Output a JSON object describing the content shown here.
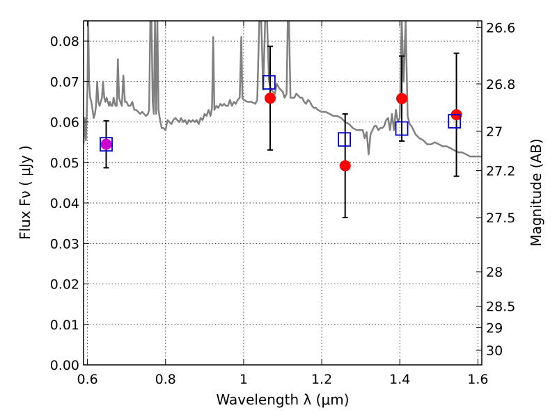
{
  "chart_data": {
    "type": "scatter",
    "xlabel": "Wavelength  λ (μm)",
    "ylabel": "Flux  Fν  ( μJy )",
    "y2label": "Magnitude (AB)",
    "xlim": [
      0.59,
      1.61
    ],
    "ylim": [
      0.0,
      0.085
    ],
    "grid": true,
    "x_ticks": [
      0.6,
      0.8,
      1.0,
      1.2,
      1.4,
      1.6
    ],
    "x_tick_labels": [
      "0.6",
      "0.8",
      "1",
      "1.2",
      "1.4",
      "1.6"
    ],
    "y_ticks": [
      0.0,
      0.01,
      0.02,
      0.03,
      0.04,
      0.05,
      0.06,
      0.07,
      0.08
    ],
    "y_tick_labels": [
      "0.00",
      "0.01",
      "0.02",
      "0.03",
      "0.04",
      "0.05",
      "0.06",
      "0.07",
      "0.08"
    ],
    "y2_ticks": [
      {
        "label": "26.6",
        "flux": 0.0834
      },
      {
        "label": "26.8",
        "flux": 0.0694
      },
      {
        "label": "27",
        "flux": 0.0577
      },
      {
        "label": "27.2",
        "flux": 0.048
      },
      {
        "label": "27.5",
        "flux": 0.0364
      },
      {
        "label": "28",
        "flux": 0.023
      },
      {
        "label": "28.5",
        "flux": 0.0145
      },
      {
        "label": "29",
        "flux": 0.0092
      },
      {
        "label": "30",
        "flux": 0.0036
      }
    ],
    "series": [
      {
        "kind": "model_spectrum",
        "color": "#808080",
        "points": [
          [
            0.59,
            0.0545
          ],
          [
            0.593,
            0.061
          ],
          [
            0.596,
            0.0555
          ],
          [
            0.6,
            0.068
          ],
          [
            0.602,
            0.085
          ],
          [
            0.604,
            0.07
          ],
          [
            0.607,
            0.066
          ],
          [
            0.61,
            0.065
          ],
          [
            0.613,
            0.063
          ],
          [
            0.616,
            0.061
          ],
          [
            0.619,
            0.062
          ],
          [
            0.622,
            0.064
          ],
          [
            0.625,
            0.07
          ],
          [
            0.628,
            0.065
          ],
          [
            0.631,
            0.064
          ],
          [
            0.634,
            0.065
          ],
          [
            0.637,
            0.066
          ],
          [
            0.64,
            0.07
          ],
          [
            0.643,
            0.066
          ],
          [
            0.646,
            0.065
          ],
          [
            0.649,
            0.066
          ],
          [
            0.652,
            0.065
          ],
          [
            0.655,
            0.064
          ],
          [
            0.658,
            0.065
          ],
          [
            0.661,
            0.064
          ],
          [
            0.664,
            0.064
          ],
          [
            0.667,
            0.066
          ],
          [
            0.669,
            0.065
          ],
          [
            0.672,
            0.064
          ],
          [
            0.675,
            0.064
          ],
          [
            0.678,
            0.0755
          ],
          [
            0.681,
            0.066
          ],
          [
            0.684,
            0.065
          ],
          [
            0.688,
            0.064
          ],
          [
            0.692,
            0.0715
          ],
          [
            0.696,
            0.065
          ],
          [
            0.7,
            0.065
          ],
          [
            0.705,
            0.064
          ],
          [
            0.71,
            0.064
          ],
          [
            0.715,
            0.065
          ],
          [
            0.72,
            0.063
          ],
          [
            0.725,
            0.063
          ],
          [
            0.73,
            0.0625
          ],
          [
            0.735,
            0.062
          ],
          [
            0.74,
            0.0625
          ],
          [
            0.745,
            0.062
          ],
          [
            0.75,
            0.0615
          ],
          [
            0.755,
            0.062
          ],
          [
            0.758,
            0.063
          ],
          [
            0.761,
            0.085
          ],
          [
            0.764,
            0.085
          ],
          [
            0.767,
            0.065
          ],
          [
            0.77,
            0.062
          ],
          [
            0.773,
            0.085
          ],
          [
            0.776,
            0.062
          ],
          [
            0.779,
            0.085
          ],
          [
            0.782,
            0.063
          ],
          [
            0.785,
            0.061
          ],
          [
            0.79,
            0.0585
          ],
          [
            0.795,
            0.0585
          ],
          [
            0.8,
            0.058
          ],
          [
            0.805,
            0.0605
          ],
          [
            0.81,
            0.06
          ],
          [
            0.815,
            0.0595
          ],
          [
            0.82,
            0.0605
          ],
          [
            0.825,
            0.061
          ],
          [
            0.83,
            0.0605
          ],
          [
            0.835,
            0.06
          ],
          [
            0.84,
            0.061
          ],
          [
            0.845,
            0.06
          ],
          [
            0.85,
            0.0605
          ],
          [
            0.855,
            0.0595
          ],
          [
            0.86,
            0.0605
          ],
          [
            0.865,
            0.06
          ],
          [
            0.87,
            0.0605
          ],
          [
            0.875,
            0.06
          ],
          [
            0.88,
            0.0605
          ],
          [
            0.885,
            0.0595
          ],
          [
            0.89,
            0.061
          ],
          [
            0.895,
            0.0605
          ],
          [
            0.9,
            0.062
          ],
          [
            0.905,
            0.0615
          ],
          [
            0.91,
            0.063
          ],
          [
            0.915,
            0.0615
          ],
          [
            0.919,
            0.0635
          ],
          [
            0.922,
            0.081
          ],
          [
            0.925,
            0.063
          ],
          [
            0.93,
            0.064
          ],
          [
            0.935,
            0.0635
          ],
          [
            0.94,
            0.0645
          ],
          [
            0.945,
            0.064
          ],
          [
            0.95,
            0.0645
          ],
          [
            0.955,
            0.064
          ],
          [
            0.96,
            0.064
          ],
          [
            0.965,
            0.0655
          ],
          [
            0.97,
            0.064
          ],
          [
            0.975,
            0.065
          ],
          [
            0.98,
            0.0645
          ],
          [
            0.985,
            0.0655
          ],
          [
            0.99,
            0.066
          ],
          [
            0.994,
            0.081
          ],
          [
            0.997,
            0.066
          ],
          [
            1.0,
            0.0655
          ],
          [
            1.01,
            0.065
          ],
          [
            1.02,
            0.065
          ],
          [
            1.03,
            0.0645
          ],
          [
            1.035,
            0.0655
          ],
          [
            1.04,
            0.085
          ],
          [
            1.045,
            0.085
          ],
          [
            1.05,
            0.068
          ],
          [
            1.055,
            0.085
          ],
          [
            1.06,
            0.085
          ],
          [
            1.065,
            0.07
          ],
          [
            1.07,
            0.068
          ],
          [
            1.075,
            0.0675
          ],
          [
            1.08,
            0.067
          ],
          [
            1.085,
            0.0695
          ],
          [
            1.09,
            0.0685
          ],
          [
            1.095,
            0.068
          ],
          [
            1.1,
            0.0675
          ],
          [
            1.105,
            0.066
          ],
          [
            1.11,
            0.067
          ],
          [
            1.113,
            0.085
          ],
          [
            1.116,
            0.085
          ],
          [
            1.12,
            0.066
          ],
          [
            1.125,
            0.066
          ],
          [
            1.13,
            0.066
          ],
          [
            1.135,
            0.067
          ],
          [
            1.14,
            0.0665
          ],
          [
            1.145,
            0.066
          ],
          [
            1.15,
            0.066
          ],
          [
            1.155,
            0.065
          ],
          [
            1.16,
            0.0645
          ],
          [
            1.165,
            0.0655
          ],
          [
            1.17,
            0.065
          ],
          [
            1.175,
            0.064
          ],
          [
            1.18,
            0.0635
          ],
          [
            1.185,
            0.0635
          ],
          [
            1.19,
            0.063
          ],
          [
            1.2,
            0.0625
          ],
          [
            1.21,
            0.0625
          ],
          [
            1.22,
            0.062
          ],
          [
            1.23,
            0.0615
          ],
          [
            1.24,
            0.0615
          ],
          [
            1.25,
            0.061
          ],
          [
            1.26,
            0.06
          ],
          [
            1.27,
            0.0595
          ],
          [
            1.28,
            0.0585
          ],
          [
            1.29,
            0.058
          ],
          [
            1.3,
            0.058
          ],
          [
            1.305,
            0.058
          ],
          [
            1.31,
            0.056
          ],
          [
            1.315,
            0.0575
          ],
          [
            1.32,
            0.052
          ],
          [
            1.325,
            0.057
          ],
          [
            1.33,
            0.058
          ],
          [
            1.335,
            0.059
          ],
          [
            1.34,
            0.059
          ],
          [
            1.345,
            0.058
          ],
          [
            1.35,
            0.0585
          ],
          [
            1.355,
            0.0585
          ],
          [
            1.36,
            0.059
          ],
          [
            1.365,
            0.0605
          ],
          [
            1.37,
            0.061
          ],
          [
            1.375,
            0.058
          ],
          [
            1.38,
            0.062
          ],
          [
            1.385,
            0.058
          ],
          [
            1.39,
            0.063
          ],
          [
            1.395,
            0.06
          ],
          [
            1.4,
            0.061
          ],
          [
            1.405,
            0.085
          ],
          [
            1.41,
            0.07
          ],
          [
            1.415,
            0.085
          ],
          [
            1.42,
            0.0615
          ],
          [
            1.425,
            0.0595
          ],
          [
            1.43,
            0.059
          ],
          [
            1.435,
            0.058
          ],
          [
            1.44,
            0.057
          ],
          [
            1.45,
            0.056
          ],
          [
            1.46,
            0.0555
          ],
          [
            1.47,
            0.0545
          ],
          [
            1.48,
            0.0545
          ],
          [
            1.49,
            0.055
          ],
          [
            1.5,
            0.0545
          ],
          [
            1.51,
            0.054
          ],
          [
            1.52,
            0.054
          ],
          [
            1.53,
            0.0535
          ],
          [
            1.54,
            0.053
          ],
          [
            1.55,
            0.0525
          ],
          [
            1.56,
            0.0525
          ],
          [
            1.57,
            0.052
          ],
          [
            1.58,
            0.0515
          ],
          [
            1.59,
            0.0515
          ],
          [
            1.6,
            0.0515
          ],
          [
            1.61,
            0.0515
          ]
        ]
      },
      {
        "kind": "model_photometry",
        "marker": "open-square",
        "color": "#0000cc",
        "points": [
          [
            0.648,
            0.0545
          ],
          [
            1.065,
            0.0698
          ],
          [
            1.258,
            0.0557
          ],
          [
            1.405,
            0.0584
          ],
          [
            1.54,
            0.0602
          ]
        ]
      },
      {
        "kind": "observed_photometry",
        "marker": "filled-circle",
        "color": "#ff0000",
        "points": [
          {
            "x": 0.648,
            "y": 0.0545,
            "yerr": 0.0058,
            "color": "#cc00cc"
          },
          {
            "x": 1.068,
            "y": 0.0659,
            "yerr": 0.0128,
            "color": "#ff0000"
          },
          {
            "x": 1.26,
            "y": 0.0492,
            "yerr": 0.0128,
            "color": "#ff0000"
          },
          {
            "x": 1.405,
            "y": 0.0658,
            "yerr": 0.0105,
            "color": "#ff0000"
          },
          {
            "x": 1.545,
            "y": 0.0618,
            "yerr": 0.0152,
            "color": "#ff0000"
          }
        ]
      }
    ]
  }
}
